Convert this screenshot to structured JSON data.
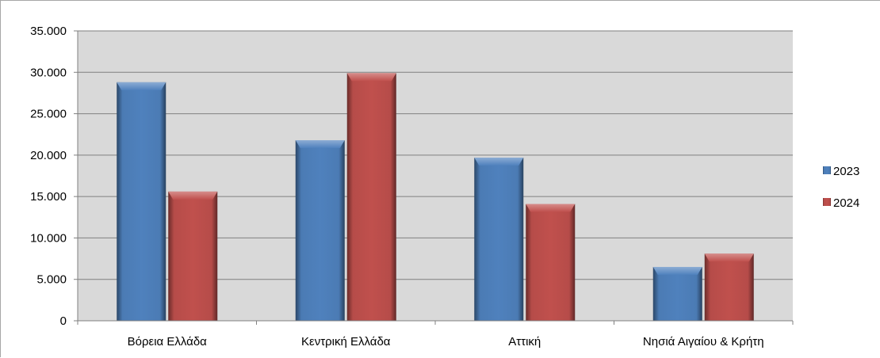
{
  "chart_data": {
    "type": "bar",
    "title": "",
    "xlabel": "",
    "ylabel": "",
    "categories": [
      "Βόρεια Ελλάδα",
      "Κεντρική Ελλάδα",
      "Αττική",
      "Νησιά Αιγαίου & Κρήτη"
    ],
    "series": [
      {
        "name": "2023",
        "color": "#4f81bd",
        "values": [
          28800,
          21800,
          19700,
          6500
        ]
      },
      {
        "name": "2024",
        "color": "#c0504d",
        "values": [
          15600,
          29900,
          14100,
          8100
        ]
      }
    ],
    "ylim": [
      0,
      35000
    ],
    "yticks": [
      0,
      5000,
      10000,
      15000,
      20000,
      25000,
      30000,
      35000
    ],
    "ytick_labels": [
      "0",
      "5.000",
      "10.000",
      "15.000",
      "20.000",
      "25.000",
      "30.000",
      "35.000"
    ],
    "grid": true,
    "plot_background": "#d9d9d9",
    "legend_position": "right"
  }
}
